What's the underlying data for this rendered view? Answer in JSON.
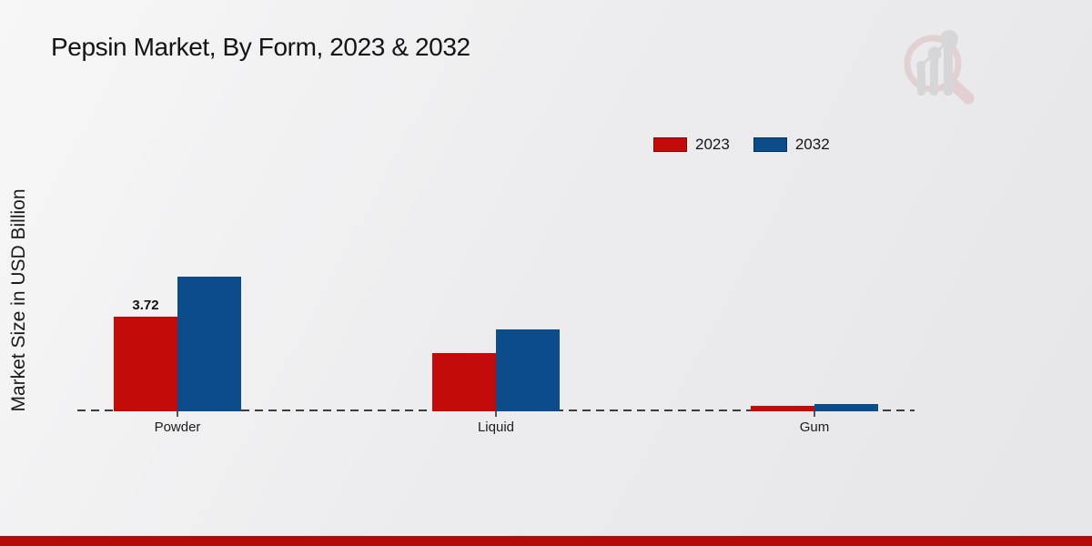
{
  "title": "Pepsin Market, By Form, 2023 & 2032",
  "ylabel": "Market Size in USD Billion",
  "legend": {
    "position": "top-right",
    "items": [
      {
        "label": "2023",
        "color": "#c40b0b"
      },
      {
        "label": "2032",
        "color": "#0d4c8b"
      }
    ]
  },
  "chart_data": {
    "type": "bar",
    "categories": [
      "Powder",
      "Liquid",
      "Gum"
    ],
    "series": [
      {
        "name": "2023",
        "color": "#c40b0b",
        "values": [
          3.72,
          2.3,
          0.2
        ]
      },
      {
        "name": "2032",
        "color": "#0d4c8b",
        "values": [
          5.3,
          3.2,
          0.3
        ]
      }
    ],
    "annotations": [
      {
        "category": "Powder",
        "series": "2023",
        "text": "3.72"
      }
    ],
    "title": "Pepsin Market, By Form, 2023 & 2032",
    "xlabel": "",
    "ylabel": "Market Size in USD Billion",
    "ylim": [
      0,
      6
    ],
    "grid": false,
    "baseline_style": "dashed",
    "legend_position": "top-right"
  },
  "watermark_icon": "magnifier-bar-chart-logo",
  "footer_bar_color": "#b50808"
}
